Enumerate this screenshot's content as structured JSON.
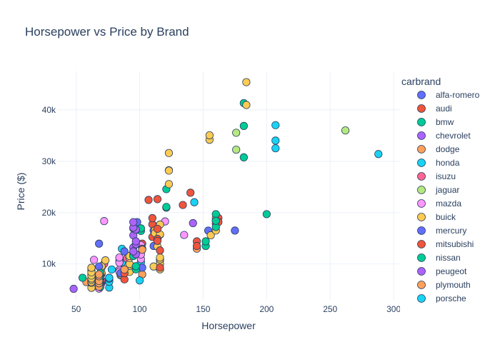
{
  "chart_data": {
    "type": "scatter",
    "title": "Horsepower vs Price by Brand",
    "xlabel": "Horsepower",
    "ylabel": "Price ($)",
    "xlim": [
      35,
      305
    ],
    "ylim": [
      3000,
      47500
    ],
    "x_ticks": [
      50,
      100,
      150,
      200,
      250,
      300
    ],
    "x_tick_labels": [
      "50",
      "100",
      "150",
      "200",
      "250",
      "300"
    ],
    "y_ticks": [
      10000,
      20000,
      30000,
      40000
    ],
    "y_tick_labels": [
      "10k",
      "20k",
      "30k",
      "40k"
    ],
    "grid": true,
    "legend_title": "carbrand",
    "legend_position": "right",
    "series": [
      {
        "name": "alfa-romero",
        "color": "#636efa",
        "points": [
          [
            111,
            13495
          ],
          [
            111,
            16500
          ],
          [
            154,
            16500
          ]
        ]
      },
      {
        "name": "audi",
        "color": "#EF553B",
        "points": [
          [
            102,
            13950
          ],
          [
            115,
            17450
          ],
          [
            110,
            15250
          ],
          [
            110,
            17710
          ],
          [
            110,
            18920
          ],
          [
            140,
            23875
          ],
          [
            160,
            17859
          ]
        ]
      },
      {
        "name": "bmw",
        "color": "#00cc96",
        "points": [
          [
            101,
            16430
          ],
          [
            101,
            16925
          ],
          [
            121,
            20970
          ],
          [
            121,
            21105
          ],
          [
            121,
            24565
          ],
          [
            182,
            30760
          ],
          [
            182,
            41315
          ],
          [
            182,
            36880
          ]
        ]
      },
      {
        "name": "chevrolet",
        "color": "#ab63fa",
        "points": [
          [
            48,
            5151
          ],
          [
            70,
            6295
          ],
          [
            70,
            6575
          ]
        ]
      },
      {
        "name": "dodge",
        "color": "#FFA15A",
        "points": [
          [
            68,
            5572
          ],
          [
            68,
            6377
          ],
          [
            102,
            7957
          ],
          [
            68,
            6229
          ],
          [
            68,
            6692
          ],
          [
            68,
            7609
          ],
          [
            88,
            8558
          ],
          [
            145,
            12964
          ],
          [
            58,
            6479
          ],
          [
            76,
            6855
          ]
        ]
      },
      {
        "name": "honda",
        "color": "#19d3f3",
        "points": [
          [
            76,
            5399
          ],
          [
            76,
            6529
          ],
          [
            76,
            7129
          ],
          [
            76,
            7295
          ],
          [
            76,
            7295
          ],
          [
            86,
            7895
          ],
          [
            86,
            9095
          ],
          [
            86,
            8845
          ],
          [
            86,
            10295
          ],
          [
            86,
            12945
          ],
          [
            101,
            10345
          ],
          [
            100,
            6785
          ],
          [
            78,
            8916
          ]
        ]
      },
      {
        "name": "isuzu",
        "color": "#FF6692",
        "points": [
          [
            70,
            6785
          ],
          [
            90,
            11048
          ],
          [
            72,
            10000
          ]
        ]
      },
      {
        "name": "jaguar",
        "color": "#B6E880",
        "points": [
          [
            176,
            32250
          ],
          [
            176,
            35550
          ],
          [
            262,
            36000
          ]
        ]
      },
      {
        "name": "mazda",
        "color": "#FF97FF",
        "points": [
          [
            68,
            5195
          ],
          [
            68,
            6095
          ],
          [
            68,
            6795
          ],
          [
            68,
            6695
          ],
          [
            68,
            7395
          ],
          [
            101,
            10945
          ],
          [
            101,
            11845
          ],
          [
            101,
            13645
          ],
          [
            135,
            15645
          ],
          [
            84,
            8845
          ],
          [
            84,
            8495
          ],
          [
            84,
            10595
          ],
          [
            84,
            10245
          ],
          [
            64,
            10795
          ],
          [
            84,
            11245
          ],
          [
            120,
            18280
          ],
          [
            72,
            18344
          ]
        ]
      },
      {
        "name": "buick",
        "color": "#FECB52",
        "points": [
          [
            123,
            25552
          ],
          [
            123,
            28248
          ],
          [
            123,
            28176
          ],
          [
            123,
            31600
          ],
          [
            155,
            34184
          ],
          [
            155,
            35056
          ],
          [
            184,
            40960
          ],
          [
            184,
            45400
          ],
          [
            62,
            5348
          ],
          [
            62,
            6338
          ],
          [
            62,
            6488
          ],
          [
            62,
            6918
          ],
          [
            62,
            7898
          ],
          [
            62,
            8778
          ],
          [
            62,
            6938
          ],
          [
            62,
            7198
          ],
          [
            62,
            7788
          ],
          [
            62,
            7738
          ],
          [
            62,
            8358
          ],
          [
            62,
            9258
          ],
          [
            70,
            8058
          ],
          [
            70,
            8238
          ],
          [
            70,
            9298
          ],
          [
            70,
            9538
          ],
          [
            92,
            8449
          ],
          [
            92,
            9639
          ],
          [
            92,
            9989
          ],
          [
            92,
            11199
          ],
          [
            92,
            11549
          ],
          [
            116,
            17669
          ],
          [
            116,
            8948
          ],
          [
            116,
            10698
          ],
          [
            116,
            9988
          ],
          [
            116,
            10898
          ],
          [
            116,
            11248
          ],
          [
            112,
            16558
          ],
          [
            112,
            15998
          ],
          [
            116,
            15690
          ],
          [
            116,
            15750
          ],
          [
            85,
            7775
          ],
          [
            85,
            7975
          ],
          [
            156,
            15580
          ],
          [
            160,
            16515
          ],
          [
            160,
            18420
          ],
          [
            160,
            18950
          ],
          [
            111,
            9500
          ],
          [
            73,
            10700
          ],
          [
            114,
            13415
          ]
        ]
      },
      {
        "name": "mercury",
        "color": "#636efa",
        "points": [
          [
            175,
            16503
          ],
          [
            68,
            13950
          ],
          [
            85,
            8195
          ],
          [
            97,
            16630
          ],
          [
            98,
            18150
          ],
          [
            95,
            12170
          ],
          [
            88,
            12440
          ],
          [
            68,
            9495
          ],
          [
            102,
            9279
          ]
        ]
      },
      {
        "name": "mitsubishi",
        "color": "#EF553B",
        "points": [
          [
            88,
            6989
          ],
          [
            88,
            8189
          ],
          [
            116,
            9279
          ],
          [
            116,
            12629
          ],
          [
            114,
            14869
          ],
          [
            114,
            14489
          ],
          [
            145,
            14399
          ],
          [
            145,
            13499
          ],
          [
            107,
            22470
          ],
          [
            114,
            22625
          ],
          [
            134,
            21485
          ],
          [
            162,
            18950
          ],
          [
            162,
            18150
          ],
          [
            114,
            16845
          ],
          [
            68,
            7603
          ],
          [
            102,
            12940
          ]
        ]
      },
      {
        "name": "nissan",
        "color": "#00cc96",
        "points": [
          [
            69,
            5499
          ],
          [
            69,
            7099
          ],
          [
            69,
            6649
          ],
          [
            69,
            6849
          ],
          [
            69,
            7349
          ],
          [
            55,
            7299
          ],
          [
            69,
            7499
          ],
          [
            69,
            7999
          ],
          [
            69,
            8249
          ],
          [
            97,
            8949
          ],
          [
            97,
            9549
          ],
          [
            152,
            13499
          ],
          [
            152,
            14399
          ],
          [
            160,
            17199
          ],
          [
            160,
            19699
          ],
          [
            200,
            19699
          ],
          [
            160,
            18399
          ],
          [
            95,
            11549
          ]
        ]
      },
      {
        "name": "peugeot",
        "color": "#ab63fa",
        "points": [
          [
            97,
            11900
          ],
          [
            95,
            13200
          ],
          [
            95,
            12440
          ],
          [
            97,
            13860
          ],
          [
            95,
            15580
          ],
          [
            95,
            16900
          ],
          [
            97,
            16695
          ],
          [
            95,
            17075
          ],
          [
            142,
            17950
          ],
          [
            95,
            18150
          ],
          [
            97,
            14399
          ]
        ]
      },
      {
        "name": "plymouth",
        "color": "#FFA15A",
        "points": [
          [
            68,
            5572
          ],
          [
            68,
            6229
          ],
          [
            68,
            6692
          ],
          [
            68,
            7609
          ],
          [
            88,
            8921
          ],
          [
            102,
            12764
          ],
          [
            68,
            7957
          ]
        ]
      },
      {
        "name": "porsche",
        "color": "#19d3f3",
        "points": [
          [
            207,
            32528
          ],
          [
            207,
            34028
          ],
          [
            207,
            37028
          ],
          [
            288,
            31400
          ],
          [
            143,
            22018
          ]
        ]
      }
    ]
  }
}
